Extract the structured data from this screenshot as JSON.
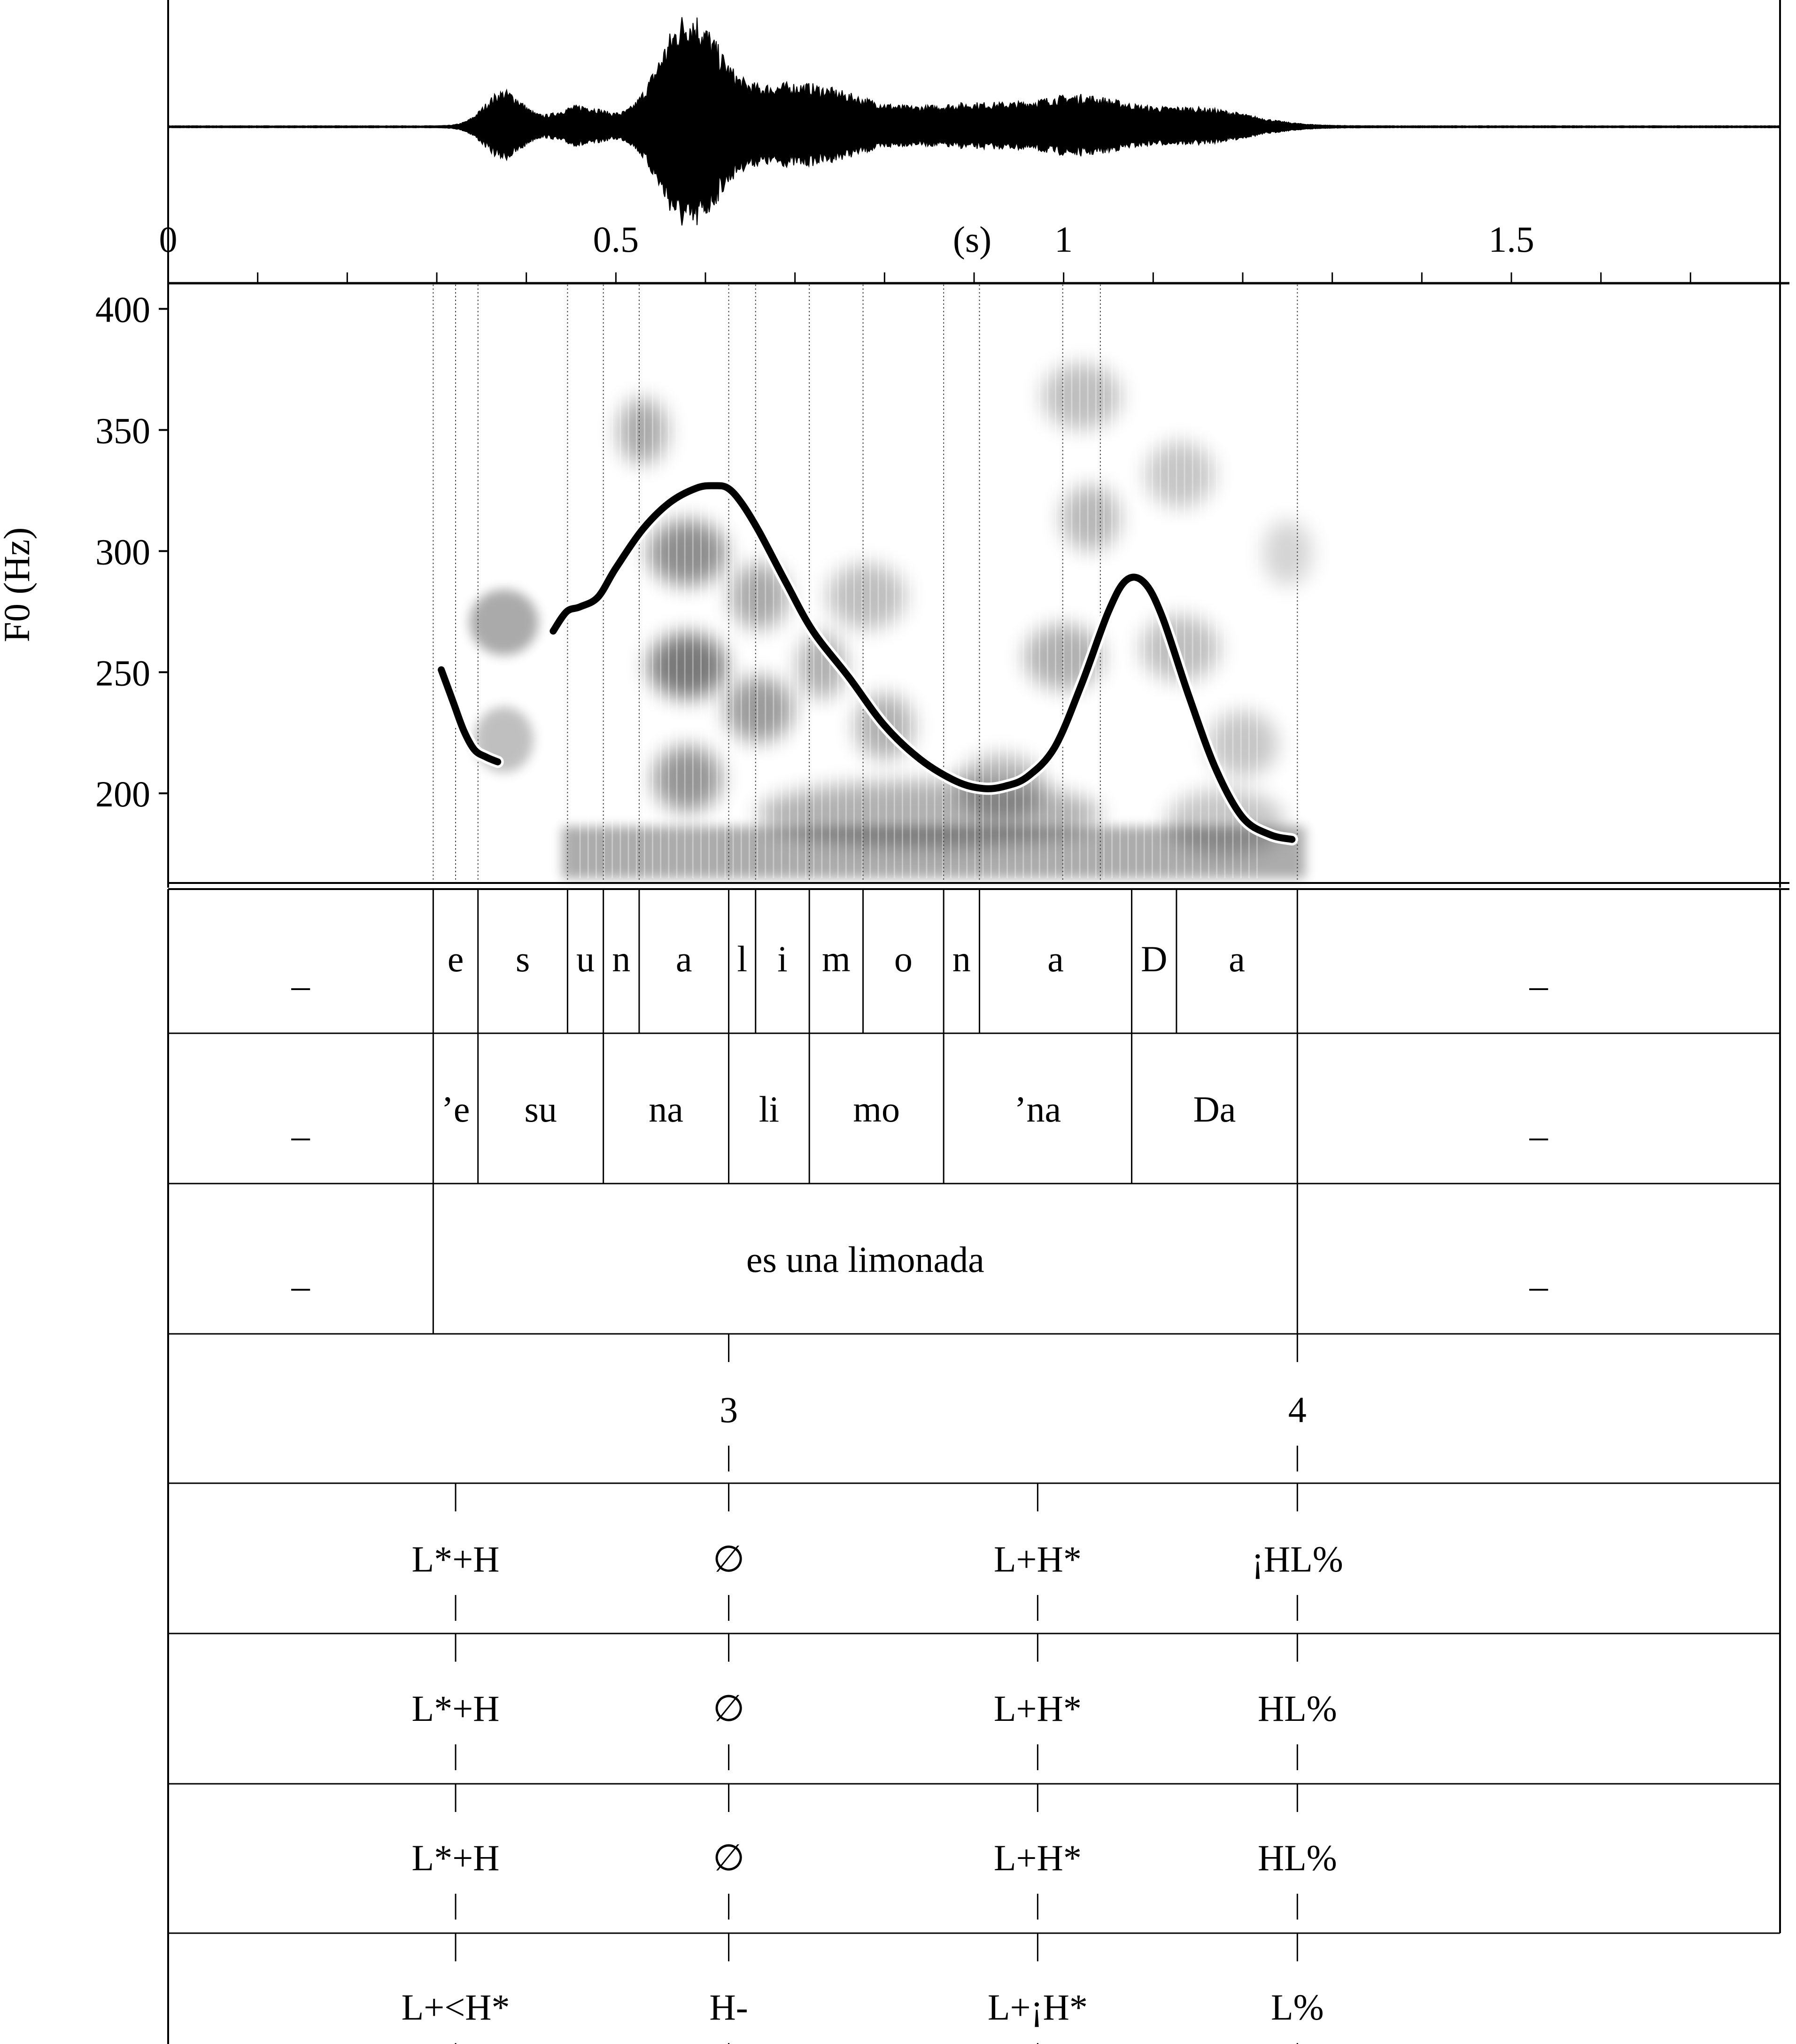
{
  "chart_data": {
    "type": "line",
    "xlabel": "(s)",
    "ylabel": "F0 (Hz)",
    "xlim": [
      0,
      1.8
    ],
    "ylim": [
      163,
      410
    ],
    "x_ticks": [
      {
        "value": 0,
        "label": "0"
      },
      {
        "value": 0.5,
        "label": "0.5"
      },
      {
        "value": 1,
        "label": "1"
      },
      {
        "value": 1.5,
        "label": "1.5"
      }
    ],
    "y_ticks": [
      {
        "value": 400,
        "label": "400"
      },
      {
        "value": 350,
        "label": "350"
      },
      {
        "value": 300,
        "label": "300"
      },
      {
        "value": 250,
        "label": "250"
      },
      {
        "value": 200,
        "label": "200"
      }
    ],
    "waveform": {
      "start": 0.3,
      "end": 1.27
    },
    "f0_series": [
      {
        "x": [
          0.305,
          0.318,
          0.33,
          0.342,
          0.355,
          0.368
        ],
        "y": [
          251,
          238,
          226,
          218,
          215,
          213
        ]
      },
      {
        "x": [
          0.43,
          0.445,
          0.46,
          0.48,
          0.5,
          0.53,
          0.56,
          0.59,
          0.61,
          0.625,
          0.64,
          0.66,
          0.69,
          0.72,
          0.76,
          0.8,
          0.84,
          0.88,
          0.91,
          0.935,
          0.96,
          0.99,
          1.02,
          1.05,
          1.07,
          1.09,
          1.11,
          1.14,
          1.17,
          1.2,
          1.23,
          1.255
        ],
        "y": [
          267,
          275,
          277,
          281,
          293,
          309,
          320,
          326,
          327,
          326,
          320,
          308,
          287,
          267,
          248,
          228,
          214,
          205,
          202,
          203,
          207,
          219,
          245,
          275,
          288,
          287,
          273,
          240,
          210,
          190,
          183,
          181
        ]
      }
    ],
    "boundaries": {
      "segments": [
        0.296,
        0.321,
        0.346,
        0.446,
        0.486,
        0.526,
        0.626,
        0.656,
        0.716,
        0.776,
        0.866,
        0.906,
        0.999,
        1.041,
        1.261
      ],
      "syllables": [
        0.296,
        0.346,
        0.486,
        0.626,
        0.716,
        0.866,
        1.076,
        1.261
      ],
      "words": [
        0.296,
        1.261
      ]
    }
  },
  "tiers": {
    "phones": [
      {
        "text": "_",
        "start": 0,
        "end": 0.296
      },
      {
        "text": "e",
        "start": 0.296,
        "end": 0.346
      },
      {
        "text": "s",
        "start": 0.346,
        "end": 0.446
      },
      {
        "text": "u",
        "start": 0.446,
        "end": 0.486
      },
      {
        "text": "n",
        "start": 0.486,
        "end": 0.526
      },
      {
        "text": "a",
        "start": 0.526,
        "end": 0.626
      },
      {
        "text": "l",
        "start": 0.626,
        "end": 0.656
      },
      {
        "text": "i",
        "start": 0.656,
        "end": 0.716
      },
      {
        "text": "m",
        "start": 0.716,
        "end": 0.776
      },
      {
        "text": "o",
        "start": 0.776,
        "end": 0.866
      },
      {
        "text": "n",
        "start": 0.866,
        "end": 0.906
      },
      {
        "text": "a",
        "start": 0.906,
        "end": 1.076
      },
      {
        "text": "D",
        "start": 1.076,
        "end": 1.126
      },
      {
        "text": "a",
        "start": 1.126,
        "end": 1.261
      },
      {
        "text": "_",
        "start": 1.261,
        "end": 1.8
      }
    ],
    "syllables": [
      {
        "text": "_",
        "start": 0,
        "end": 0.296
      },
      {
        "text": "’e",
        "start": 0.296,
        "end": 0.346
      },
      {
        "text": "su",
        "start": 0.346,
        "end": 0.486
      },
      {
        "text": "na",
        "start": 0.486,
        "end": 0.626
      },
      {
        "text": "li",
        "start": 0.626,
        "end": 0.716
      },
      {
        "text": "mo",
        "start": 0.716,
        "end": 0.866
      },
      {
        "text": "’na",
        "start": 0.866,
        "end": 1.076
      },
      {
        "text": "Da",
        "start": 1.076,
        "end": 1.261
      },
      {
        "text": "_",
        "start": 1.261,
        "end": 1.8
      }
    ],
    "words": [
      {
        "text": "_",
        "start": 0,
        "end": 0.296
      },
      {
        "text": "es una limonada",
        "start": 0.296,
        "end": 1.261
      },
      {
        "text": "_",
        "start": 1.261,
        "end": 1.8
      }
    ],
    "break_indices": [
      {
        "text": "3",
        "time": 0.626
      },
      {
        "text": "4",
        "time": 1.261
      }
    ],
    "tones_1": [
      {
        "text": "L*+H",
        "time": 0.321
      },
      {
        "text": "∅",
        "time": 0.626
      },
      {
        "text": "L+H*",
        "time": 0.971
      },
      {
        "text": "¡HL%",
        "time": 1.261
      }
    ],
    "tones_2": [
      {
        "text": "L*+H",
        "time": 0.321
      },
      {
        "text": "∅",
        "time": 0.626
      },
      {
        "text": "L+H*",
        "time": 0.971
      },
      {
        "text": "HL%",
        "time": 1.261
      }
    ],
    "tones_3": [
      {
        "text": "L*+H",
        "time": 0.321
      },
      {
        "text": "∅",
        "time": 0.626
      },
      {
        "text": "L+H*",
        "time": 0.971
      },
      {
        "text": "HL%",
        "time": 1.261
      }
    ],
    "tones_4": [
      {
        "text": "L+<H*",
        "time": 0.321
      },
      {
        "text": "H-",
        "time": 0.626
      },
      {
        "text": "L+¡H*",
        "time": 0.971
      },
      {
        "text": "L%",
        "time": 1.261
      }
    ]
  }
}
